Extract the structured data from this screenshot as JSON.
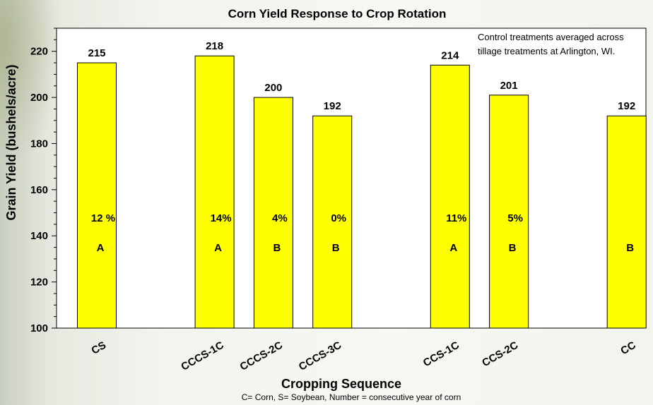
{
  "chart_data": {
    "type": "bar",
    "title": "Corn Yield Response to Crop Rotation",
    "xlabel": "Cropping Sequence",
    "ylabel": "Grain Yield (bushels/acre)",
    "ylim": [
      100,
      230
    ],
    "yticks": [
      100,
      120,
      140,
      160,
      180,
      200,
      220
    ],
    "grid": false,
    "legend": "none",
    "categories": [
      "CS",
      "CCCS-1C",
      "CCCS-2C",
      "CCCS-3C",
      "CCS-1C",
      "CCS-2C",
      "CC"
    ],
    "values": [
      215,
      218,
      200,
      192,
      214,
      201,
      192
    ],
    "value_labels": [
      "215",
      "218",
      "200",
      "192",
      "214",
      "201",
      "192"
    ],
    "percent_labels": [
      "12 %",
      "14%",
      "4%",
      "0%",
      "11%",
      "5%",
      ""
    ],
    "letter_labels": [
      "A",
      "A",
      "B",
      "B",
      "A",
      "B",
      "B"
    ],
    "note_lines": [
      "Control treatments averaged across",
      "tillage  treatments at Arlington,  WI."
    ],
    "footnote": "C= Corn,  S= Soybean, Number = consecutive  year of corn",
    "colors": {
      "bar_fill": "#ffff00",
      "bar_stroke": "#000000",
      "plot_bg": "#ffffff"
    }
  }
}
